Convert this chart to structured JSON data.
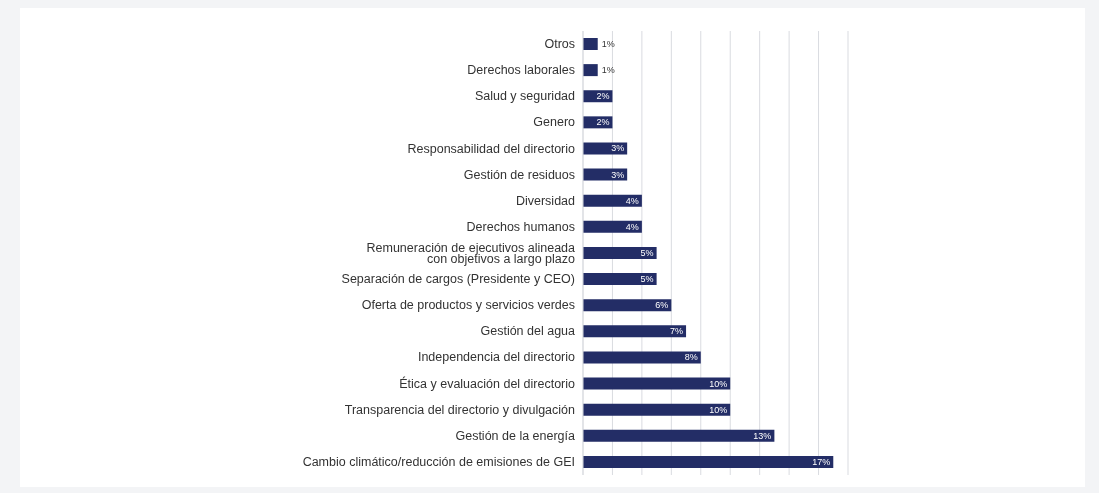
{
  "chart_data": {
    "type": "bar",
    "orientation": "horizontal",
    "categories": [
      "Otros",
      "Derechos laborales",
      "Salud y seguridad",
      "Genero",
      "Responsabilidad del directorio",
      "Gestión de residuos",
      "Diversidad",
      "Derechos humanos",
      "Remuneración de ejecutivos alineada\ncon objetivos a largo plazo",
      "Separación de cargos (Presidente y CEO)",
      "Oferta de productos y servicios verdes",
      "Gestión del agua",
      "Independencia del directorio",
      "Ética y evaluación del directorio",
      "Transparencia del directorio y divulgación",
      "Gestión de la energía",
      "Cambio climático/reducción de emisiones de GEI"
    ],
    "values": [
      1,
      1,
      2,
      2,
      3,
      3,
      4,
      4,
      5,
      5,
      6,
      7,
      8,
      10,
      10,
      13,
      17
    ],
    "value_labels": [
      "1%",
      "1%",
      "2%",
      "2%",
      "3%",
      "3%",
      "4%",
      "4%",
      "5%",
      "5%",
      "6%",
      "7%",
      "8%",
      "10%",
      "10%",
      "13%",
      "17%"
    ],
    "color": "#232d66",
    "xlim": [
      0,
      18
    ],
    "xticks": [
      {
        "value": 0,
        "label": null
      },
      {
        "value": 2,
        "label": null
      },
      {
        "value": 4,
        "label": null
      },
      {
        "value": 6,
        "label": null
      },
      {
        "value": 8,
        "label": null
      },
      {
        "value": 10,
        "label": null
      },
      {
        "value": 12,
        "label": null
      },
      {
        "value": 14,
        "label": null
      },
      {
        "value": 16,
        "label": null
      },
      {
        "value": 18,
        "label": null
      }
    ],
    "tick_labels": "y",
    "grid": "x",
    "legend": false
  }
}
